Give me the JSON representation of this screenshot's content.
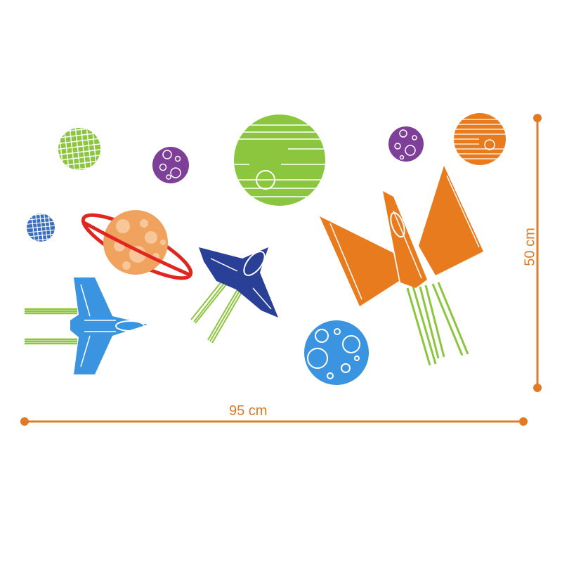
{
  "dimensions": {
    "width_label": "95 cm",
    "height_label": "50 cm",
    "line_color": "#e07b24"
  },
  "colors": {
    "orange": "#e87b1e",
    "light_orange": "#f0a35e",
    "green": "#8cc63f",
    "purple": "#7d3f98",
    "blue": "#3a8fd6",
    "navy": "#2a3f96",
    "red": "#e0261f",
    "sky_blue": "#3b94e0"
  },
  "elements": [
    "green-grid-planet-icon",
    "purple-bubble-planet-icon",
    "green-striped-planet-icon",
    "small-purple-bubble-planet-icon",
    "orange-striped-planet-icon",
    "blue-grid-planet-icon",
    "ringed-orange-planet-icon",
    "navy-spaceship-icon",
    "orange-spaceship-icon",
    "blue-spaceship-icon",
    "blue-bubble-planet-icon"
  ]
}
